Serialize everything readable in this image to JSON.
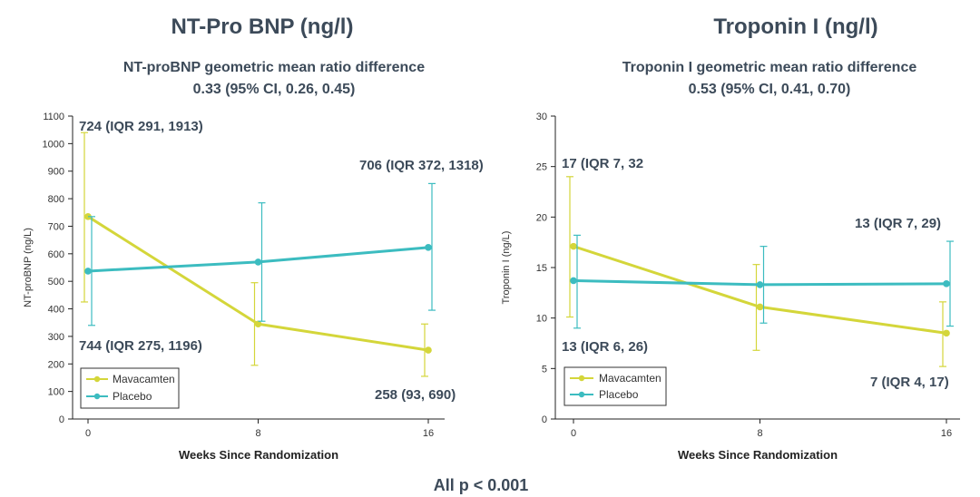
{
  "footer": "All p < 0.001",
  "colors": {
    "mavacamten": "#d4d63a",
    "placebo": "#3cbcc0",
    "text": "#3c4a59"
  },
  "chart_data": [
    {
      "type": "line",
      "title": "NT-Pro BNP (ng/l)",
      "subtitle_line1": "NT-proBNP geometric mean ratio difference",
      "subtitle_line2": "0.33 (95% CI, 0.26, 0.45)",
      "xlabel": "Weeks Since Randomization",
      "ylabel": "NT-proBNP (ng/L)",
      "ylim": [
        0,
        1100
      ],
      "yticks": [
        0,
        100,
        200,
        300,
        400,
        500,
        600,
        700,
        800,
        900,
        1000,
        1100
      ],
      "x": [
        0,
        8,
        16
      ],
      "series": [
        {
          "name": "Mavacamten",
          "values": [
            735,
            345,
            250
          ],
          "lower": [
            425,
            195,
            155
          ],
          "upper": [
            1040,
            495,
            345
          ]
        },
        {
          "name": "Placebo",
          "values": [
            537,
            570,
            623
          ],
          "lower": [
            340,
            355,
            395
          ],
          "upper": [
            735,
            785,
            855
          ]
        }
      ],
      "annotations": [
        {
          "text": "724 (IQR 291, 1913)",
          "anchor": "mav-start"
        },
        {
          "text": "744 (IQR 275, 1196)",
          "anchor": "pla-start"
        },
        {
          "text": "706 (IQR 372, 1318)",
          "anchor": "pla-end"
        },
        {
          "text": "258 (93, 690)",
          "anchor": "mav-end"
        }
      ],
      "legend": [
        "Mavacamten",
        "Placebo"
      ],
      "legend_position": "bottom-left"
    },
    {
      "type": "line",
      "title": "Troponin I (ng/l)",
      "subtitle_line1": "Troponin I geometric mean ratio difference",
      "subtitle_line2": "0.53 (95% CI, 0.41, 0.70)",
      "xlabel": "Weeks Since Randomization",
      "ylabel": "Troponin I (ng/L)",
      "ylim": [
        0,
        30
      ],
      "yticks": [
        0,
        5,
        10,
        15,
        20,
        25,
        30
      ],
      "x": [
        0,
        8,
        16
      ],
      "series": [
        {
          "name": "Mavacamten",
          "values": [
            17.1,
            11.1,
            8.5
          ],
          "lower": [
            10.1,
            6.8,
            5.2
          ],
          "upper": [
            24.0,
            15.3,
            11.6
          ]
        },
        {
          "name": "Placebo",
          "values": [
            13.7,
            13.3,
            13.4
          ],
          "lower": [
            9.0,
            9.5,
            9.2
          ],
          "upper": [
            18.2,
            17.1,
            17.6
          ]
        }
      ],
      "annotations": [
        {
          "text": "17 (IQR 7, 32",
          "anchor": "mav-start"
        },
        {
          "text": "13 (IQR 6, 26)",
          "anchor": "pla-start"
        },
        {
          "text": "13 (IQR 7, 29)",
          "anchor": "pla-end"
        },
        {
          "text": "7 (IQR 4, 17)",
          "anchor": "mav-end"
        }
      ],
      "legend": [
        "Mavacamten",
        "Placebo"
      ],
      "legend_position": "bottom-left"
    }
  ]
}
